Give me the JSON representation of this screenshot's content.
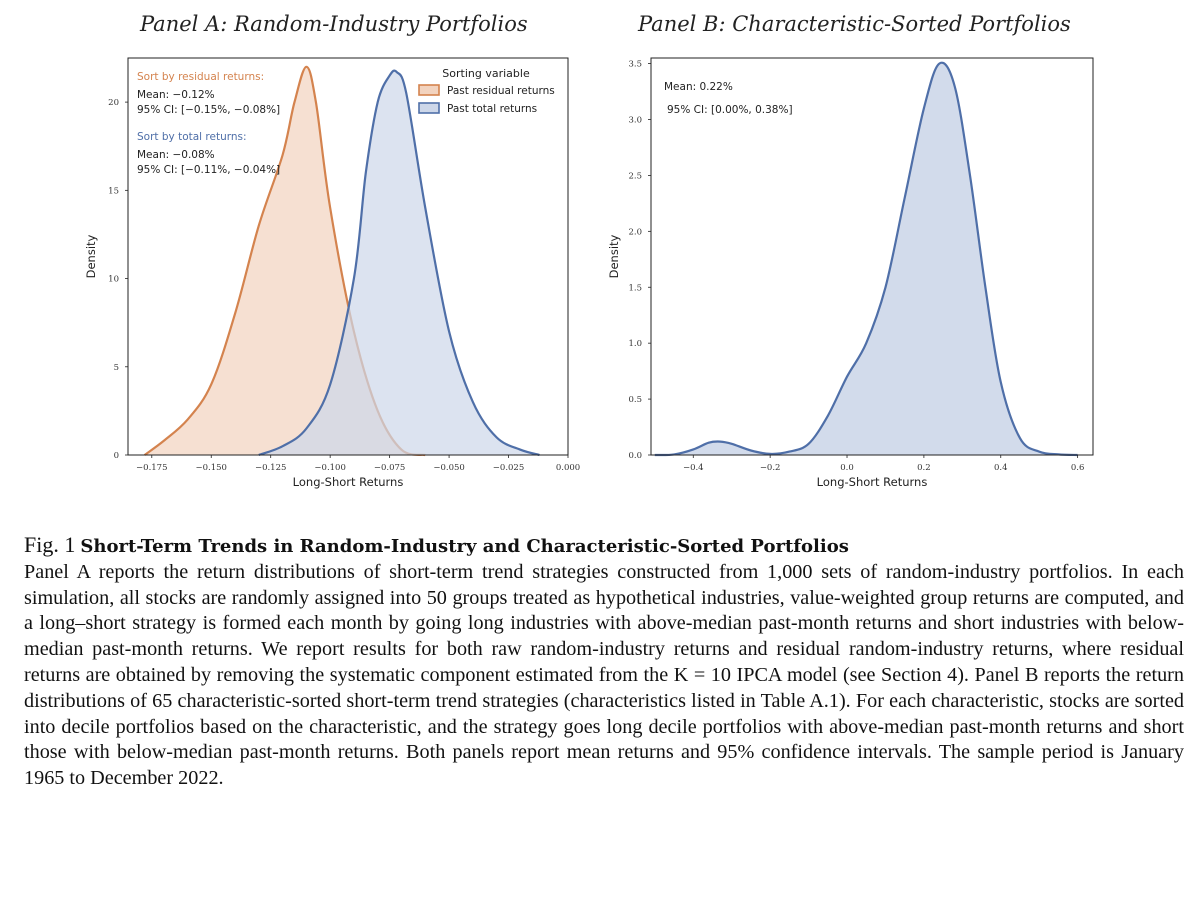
{
  "chart_data": [
    {
      "type": "area",
      "title": "Panel A: Random-Industry Portfolios",
      "xlabel": "Long-Short Returns",
      "ylabel": "Density",
      "xlim": [
        -0.185,
        0.0
      ],
      "ylim": [
        0,
        22.5
      ],
      "xticks": [
        "−0.175",
        "−0.150",
        "−0.125",
        "−0.100",
        "−0.075",
        "−0.050",
        "−0.025",
        "0.000"
      ],
      "xtick_values": [
        -0.175,
        -0.15,
        -0.125,
        -0.1,
        -0.075,
        -0.05,
        -0.025,
        0.0
      ],
      "yticks": [
        "0",
        "5",
        "10",
        "15",
        "20"
      ],
      "ytick_values": [
        0,
        5,
        10,
        15,
        20
      ],
      "legend": {
        "title": "Sorting variable",
        "placement": "top-right",
        "entries": [
          "Past residual returns",
          "Past total returns"
        ]
      },
      "annotations": {
        "residual_heading": "Sort by residual returns:",
        "residual_mean": "Mean: −0.12%",
        "residual_ci": "95% CI: [−0.15%, −0.08%]",
        "total_heading": "Sort by total returns:",
        "total_mean": "Mean: −0.08%",
        "total_ci": "95% CI: [−0.11%, −0.04%]"
      },
      "series": [
        {
          "name": "Past residual returns",
          "color": "#d4834e",
          "fill": "#f2d3bf",
          "x": [
            -0.178,
            -0.17,
            -0.16,
            -0.15,
            -0.14,
            -0.13,
            -0.12,
            -0.115,
            -0.11,
            -0.106,
            -0.1,
            -0.09,
            -0.08,
            -0.07,
            -0.06
          ],
          "y": [
            0,
            0.8,
            2.0,
            4.0,
            8.0,
            13.0,
            17.0,
            20.0,
            22.0,
            20.0,
            14.0,
            7.0,
            2.5,
            0.3,
            0
          ]
        },
        {
          "name": "Past total returns",
          "color": "#4f6fa8",
          "fill": "#cdd7e9",
          "x": [
            -0.13,
            -0.12,
            -0.11,
            -0.1,
            -0.09,
            -0.085,
            -0.08,
            -0.075,
            -0.072,
            -0.068,
            -0.06,
            -0.05,
            -0.04,
            -0.03,
            -0.02,
            -0.012
          ],
          "y": [
            0,
            0.5,
            1.5,
            4.0,
            10.0,
            16.0,
            20.0,
            21.5,
            21.7,
            20.5,
            14.0,
            7.0,
            3.0,
            1.0,
            0.3,
            0
          ]
        }
      ]
    },
    {
      "type": "area",
      "title": "Panel B: Characteristic-Sorted Portfolios",
      "xlabel": "Long-Short Returns",
      "ylabel": "Density",
      "xlim": [
        -0.51,
        0.64
      ],
      "ylim": [
        0,
        3.55
      ],
      "xticks": [
        "−0.4",
        "−0.2",
        "0.0",
        "0.2",
        "0.4",
        "0.6"
      ],
      "xtick_values": [
        -0.4,
        -0.2,
        0.0,
        0.2,
        0.4,
        0.6
      ],
      "yticks": [
        "0.0",
        "0.5",
        "1.0",
        "1.5",
        "2.0",
        "2.5",
        "3.0",
        "3.5"
      ],
      "ytick_values": [
        0,
        0.5,
        1.0,
        1.5,
        2.0,
        2.5,
        3.0,
        3.5
      ],
      "annotations": {
        "mean": "Mean: 0.22%",
        "ci": "95% CI: [0.00%, 0.38%]"
      },
      "series": [
        {
          "color": "#4f6fa8",
          "fill": "#cdd7e9",
          "x": [
            -0.5,
            -0.45,
            -0.4,
            -0.36,
            -0.33,
            -0.3,
            -0.25,
            -0.2,
            -0.15,
            -0.1,
            -0.05,
            0.0,
            0.05,
            0.1,
            0.15,
            0.2,
            0.24,
            0.28,
            0.32,
            0.36,
            0.4,
            0.45,
            0.5,
            0.55,
            0.6
          ],
          "y": [
            0,
            0.005,
            0.05,
            0.11,
            0.12,
            0.1,
            0.04,
            0.01,
            0.03,
            0.1,
            0.35,
            0.7,
            1.0,
            1.5,
            2.3,
            3.1,
            3.5,
            3.3,
            2.5,
            1.5,
            0.65,
            0.15,
            0.03,
            0.005,
            0
          ]
        }
      ]
    }
  ],
  "caption": {
    "label": "Fig. 1",
    "title": "Short-Term Trends in Random-Industry and Characteristic-Sorted Portfolios",
    "body": "Panel A reports the return distributions of short-term trend strategies constructed from 1,000 sets of random-industry portfolios. In each simulation, all stocks are randomly assigned into 50 groups treated as hypothetical industries, value-weighted group returns are computed, and a long–short strategy is formed each month by going long industries with above-median past-month returns and short industries with below-median past-month returns. We report results for both raw random-industry returns and residual random-industry returns, where residual returns are obtained by removing the systematic component estimated from the K = 10 IPCA model (see Section 4). Panel B reports the return distributions of 65 characteristic-sorted short-term trend strategies (characteristics listed in Table A.1). For each characteristic, stocks are sorted into decile portfolios based on the characteristic, and the strategy goes long decile portfolios with above-median past-month returns and short those with below-median past-month returns. Both panels report mean returns and 95% confidence intervals. The sample period is January 1965 to December 2022."
  }
}
